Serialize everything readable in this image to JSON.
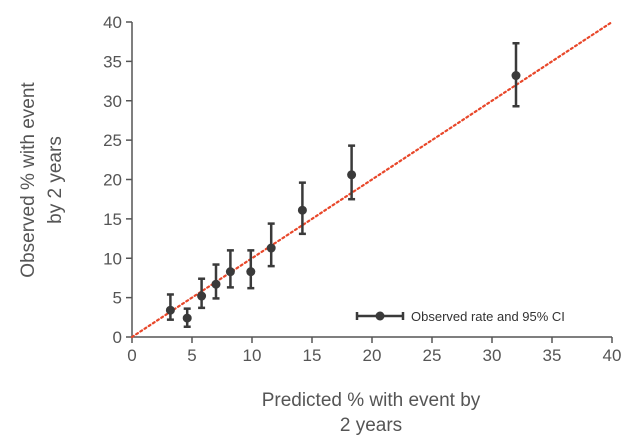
{
  "chart_data": {
    "type": "scatter",
    "xlabel_lines": [
      "Predicted % with event by",
      "2 years"
    ],
    "ylabel_lines": [
      "Observed % with event",
      "by 2 years"
    ],
    "xlim": [
      0,
      40
    ],
    "ylim": [
      0,
      40
    ],
    "x_ticks": [
      "0",
      "5",
      "10",
      "15",
      "20",
      "25",
      "30",
      "35",
      "40"
    ],
    "y_ticks": [
      "0",
      "5",
      "10",
      "15",
      "20",
      "25",
      "30",
      "35",
      "40"
    ],
    "grid": false,
    "legend": {
      "position": "bottom-right",
      "label": "Observed rate and 95% CI"
    },
    "reference_line": {
      "style": "dotted",
      "x": [
        0,
        40
      ],
      "y": [
        0,
        40
      ]
    },
    "points": [
      {
        "x": 3.2,
        "y": 3.4,
        "lo": 2.2,
        "hi": 5.4
      },
      {
        "x": 4.6,
        "y": 2.4,
        "lo": 1.3,
        "hi": 3.6
      },
      {
        "x": 5.8,
        "y": 5.2,
        "lo": 3.7,
        "hi": 7.4
      },
      {
        "x": 7.0,
        "y": 6.7,
        "lo": 4.9,
        "hi": 9.2
      },
      {
        "x": 8.2,
        "y": 8.3,
        "lo": 6.3,
        "hi": 11.0
      },
      {
        "x": 9.9,
        "y": 8.3,
        "lo": 6.2,
        "hi": 11.0
      },
      {
        "x": 11.6,
        "y": 11.3,
        "lo": 9.0,
        "hi": 14.4
      },
      {
        "x": 14.2,
        "y": 16.1,
        "lo": 13.1,
        "hi": 19.6
      },
      {
        "x": 18.3,
        "y": 20.6,
        "lo": 17.5,
        "hi": 24.3
      },
      {
        "x": 32.0,
        "y": 33.2,
        "lo": 29.3,
        "hi": 37.3
      }
    ],
    "colors": {
      "points": "#3a3a3a",
      "axis": "#555555",
      "reference": "#e8472a"
    }
  }
}
